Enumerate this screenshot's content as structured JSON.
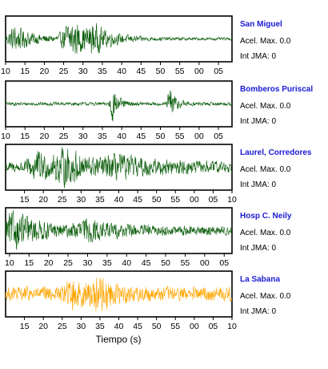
{
  "chart_data": {
    "type": "line",
    "xlabel": "Tiempo (s)",
    "amp_label": "Acel. Max.",
    "int_label": "Int JMA:",
    "stations": [
      {
        "name": "San Miguel",
        "acel_max": "0.0",
        "int_jma": "0",
        "color": "#0a5c0a",
        "ticks": [
          "10",
          "15",
          "20",
          "25",
          "30",
          "35",
          "40",
          "45",
          "50",
          "55",
          "00",
          "05"
        ],
        "x_start": 10,
        "x_end": 68.5,
        "events": [
          {
            "t": 12.5,
            "amp": 0.7,
            "dur": 5
          },
          {
            "t": 27,
            "amp": 1.0,
            "dur": 6
          },
          {
            "t": 33,
            "amp": 0.45,
            "dur": 4
          }
        ],
        "noise": 0.08
      },
      {
        "name": "Bomberos Puriscal",
        "acel_max": "0.0",
        "int_jma": "0",
        "color": "#0a5c0a",
        "ticks": [
          "10",
          "15",
          "20",
          "25",
          "30",
          "35",
          "40",
          "45",
          "50",
          "55",
          "00",
          "05"
        ],
        "x_start": 10,
        "x_end": 68.5,
        "events": [
          {
            "t": 37.5,
            "amp": 1.0,
            "dur": 1.5
          },
          {
            "t": 52.5,
            "amp": 1.0,
            "dur": 1.5
          }
        ],
        "noise": 0.1
      },
      {
        "name": "Laurel, Corredores",
        "acel_max": "0.0",
        "int_jma": "0",
        "color": "#0a5c0a",
        "ticks": [
          "15",
          "20",
          "25",
          "30",
          "35",
          "40",
          "45",
          "50",
          "55",
          "00",
          "05",
          "10"
        ],
        "x_start": 10,
        "x_end": 70,
        "events": [
          {
            "t": 18,
            "amp": 0.7,
            "dur": 5
          },
          {
            "t": 25.5,
            "amp": 1.0,
            "dur": 5
          },
          {
            "t": 40,
            "amp": 0.4,
            "dur": 12
          }
        ],
        "noise": 0.3
      },
      {
        "name": "Hosp C. Neily",
        "acel_max": "0.0",
        "int_jma": "0",
        "color": "#0a5c0a",
        "ticks": [
          "10",
          "15",
          "20",
          "25",
          "30",
          "35",
          "40",
          "45",
          "50",
          "55",
          "00",
          "05"
        ],
        "x_start": 9,
        "x_end": 67,
        "events": [
          {
            "t": 11,
            "amp": 1.0,
            "dur": 6
          },
          {
            "t": 30,
            "amp": 0.45,
            "dur": 8
          }
        ],
        "noise": 0.25
      },
      {
        "name": "La Sabana",
        "acel_max": "0.0",
        "int_jma": "0",
        "color": "#ffa500",
        "ticks": [
          "15",
          "20",
          "25",
          "30",
          "35",
          "40",
          "45",
          "50",
          "55",
          "00",
          "05",
          "10"
        ],
        "x_start": 10,
        "x_end": 70,
        "events": [
          {
            "t": 34.5,
            "amp": 1.0,
            "dur": 3
          },
          {
            "t": 28,
            "amp": 0.55,
            "dur": 6
          }
        ],
        "noise": 0.4
      }
    ]
  }
}
